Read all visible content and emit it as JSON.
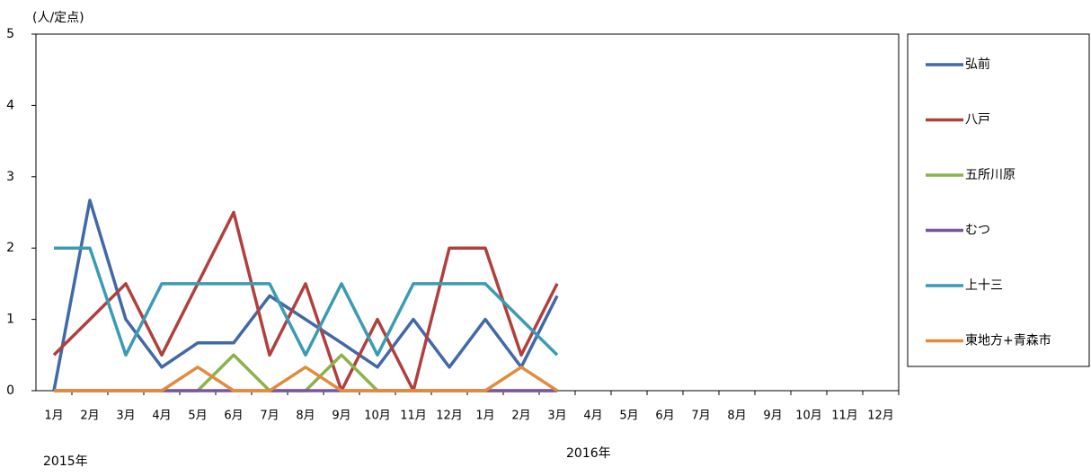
{
  "chart_data": {
    "type": "line",
    "y_axis_label": "(人/定点)",
    "annotations": [
      "2015年",
      "2016年"
    ],
    "categories": [
      "1月",
      "2月",
      "3月",
      "4月",
      "5月",
      "6月",
      "7月",
      "8月",
      "9月",
      "10月",
      "11月",
      "12月",
      "1月",
      "2月",
      "3月",
      "4月",
      "5月",
      "6月",
      "7月",
      "8月",
      "9月",
      "10月",
      "11月",
      "12月"
    ],
    "series": [
      {
        "name": "弘前",
        "color": "#4169a8",
        "values": [
          0,
          2.67,
          1,
          0.33,
          0.67,
          0.67,
          1.33,
          1,
          0.67,
          0.33,
          1,
          0.33,
          1,
          0.33,
          1.33,
          null,
          null,
          null,
          null,
          null,
          null,
          null,
          null,
          null
        ]
      },
      {
        "name": "八戸",
        "color": "#b0403d",
        "values": [
          0.5,
          1,
          1.5,
          0.5,
          1.5,
          2.5,
          0.5,
          1.5,
          0,
          1,
          0,
          2,
          2,
          0.5,
          1.5,
          null,
          null,
          null,
          null,
          null,
          null,
          null,
          null,
          null
        ]
      },
      {
        "name": "五所川原",
        "color": "#8cb24a",
        "values": [
          0,
          0,
          0,
          0,
          0,
          0.5,
          0,
          0,
          0.5,
          0,
          0,
          0,
          0,
          0,
          0,
          null,
          null,
          null,
          null,
          null,
          null,
          null,
          null,
          null
        ]
      },
      {
        "name": "むつ",
        "color": "#7a569c",
        "values": [
          0,
          0,
          0,
          0,
          0,
          0,
          0,
          0,
          0,
          0,
          0,
          0,
          0,
          0,
          0,
          null,
          null,
          null,
          null,
          null,
          null,
          null,
          null,
          null
        ]
      },
      {
        "name": "上十三",
        "color": "#3c9bb4",
        "values": [
          2,
          2,
          0.5,
          1.5,
          1.5,
          1.5,
          1.5,
          0.5,
          1.5,
          0.5,
          1.5,
          1.5,
          1.5,
          1,
          0.5,
          null,
          null,
          null,
          null,
          null,
          null,
          null,
          null,
          null
        ]
      },
      {
        "name": "東地方+青森市",
        "color": "#e38b3c",
        "values": [
          0,
          0,
          0,
          0,
          0.33,
          0,
          0,
          0.33,
          0,
          0,
          0,
          0,
          0,
          0.33,
          0,
          null,
          null,
          null,
          null,
          null,
          null,
          null,
          null,
          null
        ]
      }
    ],
    "ylim": [
      0,
      5
    ],
    "yticks": [
      0,
      1,
      2,
      3,
      4,
      5
    ],
    "grid": false,
    "legend": "right"
  }
}
